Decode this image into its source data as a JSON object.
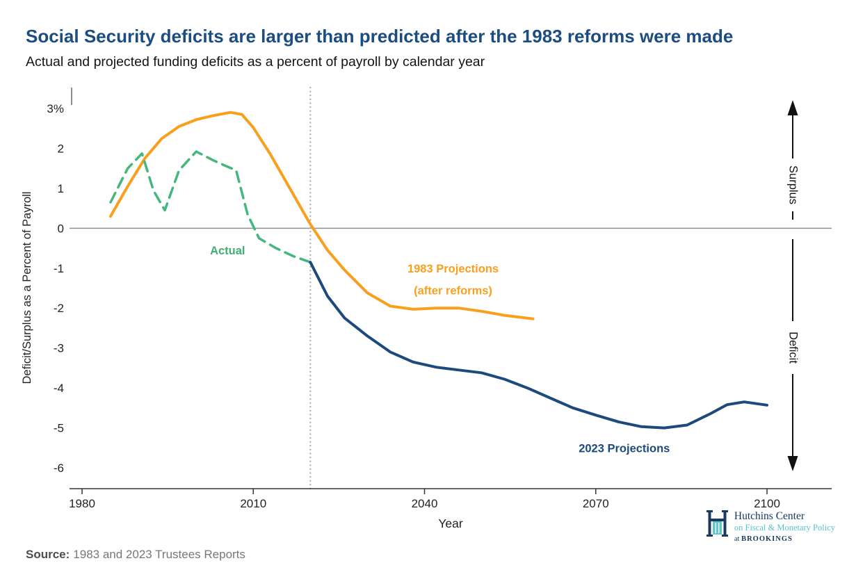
{
  "chart_data": {
    "type": "line",
    "title": "Social Security deficits are larger than predicted after the 1983 reforms were made",
    "subtitle": "Actual and projected funding deficits as a percent of payroll by calendar year",
    "xlabel": "Year",
    "ylabel": "Deficit/Surplus as a Percent of Payroll",
    "xlim": [
      1980,
      2100
    ],
    "ylim": [
      -6,
      3
    ],
    "x_ticks": [
      1980,
      2010,
      2040,
      2070,
      2100
    ],
    "y_ticks": [
      3,
      2,
      1,
      0,
      -1,
      -2,
      -3,
      -4,
      -5,
      -6
    ],
    "y_tick_labels": [
      "3%",
      "2",
      "1",
      "0",
      "-1",
      "-2",
      "-3",
      "-4",
      "-5",
      "-6"
    ],
    "grid": "off",
    "zero_line": 0,
    "projection_divider_year": 2020,
    "series": [
      {
        "id": "projections-1983",
        "name": "1983 Projections (after reforms)",
        "color": "#f8a01d",
        "dash": "solid",
        "width": 4,
        "x": [
          1985,
          1988,
          1991,
          1994,
          1997,
          2000,
          2003,
          2006,
          2008,
          2010,
          2013,
          2016,
          2020,
          2023,
          2026,
          2030,
          2034,
          2038,
          2042,
          2046,
          2050,
          2054,
          2059
        ],
        "y": [
          0.3,
          1.05,
          1.75,
          2.25,
          2.55,
          2.72,
          2.82,
          2.9,
          2.85,
          2.52,
          1.85,
          1.1,
          0.1,
          -0.55,
          -1.05,
          -1.62,
          -1.95,
          -2.03,
          -2.0,
          -2.0,
          -2.08,
          -2.18,
          -2.27
        ]
      },
      {
        "id": "actual",
        "name": "Actual",
        "color": "#44b77d",
        "dash": "dashed",
        "width": 3.5,
        "x": [
          1985,
          1988,
          1990.5,
          1992.5,
          1994.5,
          1997,
          2000,
          2003,
          2005,
          2007,
          2009,
          2011,
          2014,
          2017,
          2020
        ],
        "y": [
          0.65,
          1.5,
          1.87,
          0.95,
          0.45,
          1.45,
          1.92,
          1.7,
          1.57,
          1.45,
          0.35,
          -0.25,
          -0.5,
          -0.7,
          -0.85
        ]
      },
      {
        "id": "projections-2023",
        "name": "2023 Projections",
        "color": "#1c4a7d",
        "dash": "solid",
        "width": 4,
        "x": [
          2020,
          2023,
          2026,
          2030,
          2034,
          2038,
          2042,
          2046,
          2050,
          2054,
          2058,
          2062,
          2066,
          2070,
          2074,
          2078,
          2082,
          2086,
          2090,
          2093,
          2096,
          2100
        ],
        "y": [
          -0.85,
          -1.7,
          -2.25,
          -2.7,
          -3.1,
          -3.35,
          -3.48,
          -3.55,
          -3.62,
          -3.78,
          -4.0,
          -4.25,
          -4.5,
          -4.68,
          -4.85,
          -4.97,
          -5.0,
          -4.93,
          -4.65,
          -4.42,
          -4.35,
          -4.43
        ]
      }
    ],
    "annotations": [
      {
        "id": "actual-label",
        "text": "Actual",
        "color": "#3cb074",
        "x": 2005.5,
        "y": -0.55
      },
      {
        "id": "proj1983-label-line1",
        "text": "1983 Projections",
        "color": "#f8a01d",
        "x": 2045,
        "y": -1.0
      },
      {
        "id": "proj1983-label-line2",
        "text": "(after reforms)",
        "color": "#f8a01d",
        "x": 2045,
        "y": -1.55
      },
      {
        "id": "proj2023-label",
        "text": "2023 Projections",
        "color": "#1c4a7d",
        "x": 2075,
        "y": -5.5
      }
    ],
    "direction_labels": {
      "up": "Surplus",
      "down": "Deficit"
    }
  },
  "footer": {
    "source_label": "Source:",
    "source_text": "1983 and 2023 Trustees Reports"
  },
  "logo": {
    "line1": "Hutchins Center",
    "line2": "on Fiscal & Monetary Policy",
    "line3_prefix": "at ",
    "line3": "BROOKINGS"
  },
  "colors": {
    "title": "#1b4d80",
    "actual": "#44b77d",
    "proj1983": "#f8a01d",
    "proj2023": "#1c4a7d",
    "zero_line": "#8f8f8f",
    "divider": "#adadad",
    "arrow": "#111111",
    "logo_navy": "#1b3a5e",
    "logo_teal": "#62c6cd"
  }
}
